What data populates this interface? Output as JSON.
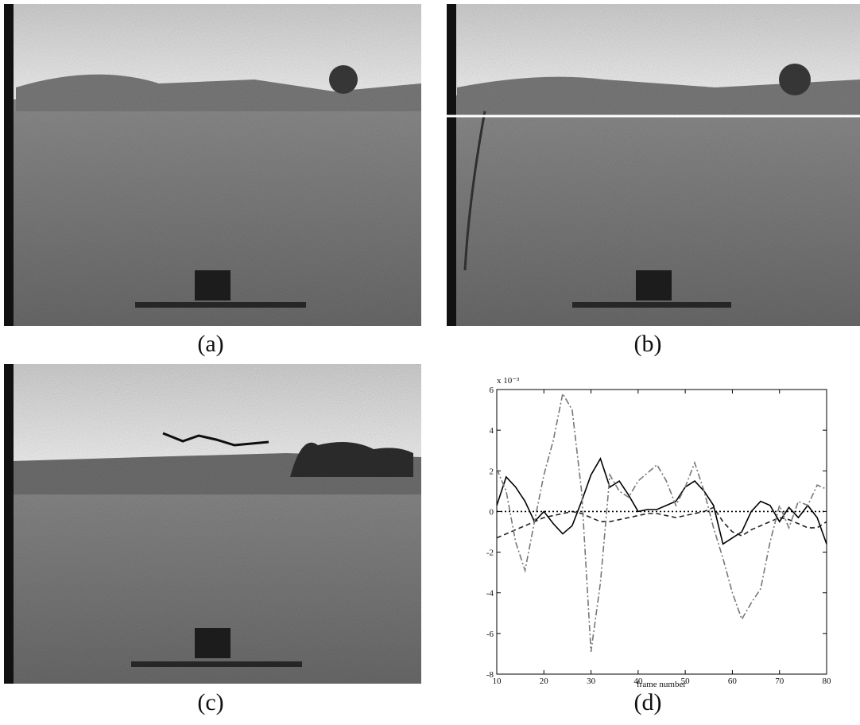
{
  "panels": {
    "a": "(a)",
    "b": "(b)",
    "c": "(c)",
    "d": "(d)"
  },
  "chart_data": {
    "type": "line",
    "scale_label": "x 10⁻³",
    "xlabel": "frame number",
    "x": [
      10,
      12,
      14,
      16,
      18,
      20,
      22,
      24,
      26,
      28,
      30,
      32,
      34,
      36,
      38,
      40,
      42,
      44,
      46,
      48,
      50,
      52,
      54,
      56,
      58,
      60,
      62,
      64,
      66,
      68,
      70,
      72,
      74,
      76,
      78,
      80
    ],
    "series": [
      {
        "color": "#000000",
        "dash": "none",
        "values": [
          0.3,
          1.7,
          1.2,
          0.5,
          -0.5,
          0,
          -0.6,
          -1.1,
          -0.7,
          0.5,
          1.8,
          2.6,
          1.2,
          1.5,
          0.8,
          0,
          0.1,
          0.1,
          0.3,
          0.5,
          1.2,
          1.5,
          1.0,
          0.3,
          -1.6,
          -1.3,
          -1.0,
          0,
          0.5,
          0.3,
          -0.5,
          0.2,
          -0.3,
          0.3,
          -0.3,
          -1.6
        ]
      },
      {
        "color": "#222222",
        "dash": "6 4",
        "values": [
          -1.3,
          -1.1,
          -0.9,
          -0.7,
          -0.5,
          -0.3,
          -0.2,
          -0.1,
          0,
          -0.1,
          -0.3,
          -0.5,
          -0.5,
          -0.4,
          -0.3,
          -0.2,
          -0.1,
          -0.1,
          -0.2,
          -0.3,
          -0.2,
          -0.1,
          0,
          0.2,
          -0.5,
          -1.0,
          -1.2,
          -0.9,
          -0.7,
          -0.5,
          -0.3,
          -0.4,
          -0.6,
          -0.8,
          -0.8,
          -0.5
        ]
      },
      {
        "color": "#777777",
        "dash": "8 3 2 3",
        "values": [
          2.1,
          1.0,
          -1.5,
          -2.9,
          -0.5,
          1.8,
          3.5,
          5.8,
          5.0,
          1.0,
          -6.9,
          -3.5,
          1.8,
          1.0,
          0.7,
          1.5,
          1.9,
          2.3,
          1.5,
          0.3,
          1.2,
          2.4,
          1.0,
          -0.8,
          -2.3,
          -4.0,
          -5.3,
          -4.5,
          -3.8,
          -1.5,
          0.3,
          -0.8,
          0.5,
          0.3,
          1.3,
          1.1
        ]
      },
      {
        "color": "#000000",
        "dash": "2 3",
        "values": [
          0,
          0,
          0,
          0,
          0,
          0,
          0,
          0,
          0,
          0,
          0,
          0,
          0,
          0,
          0,
          0,
          0,
          0,
          0,
          0,
          0,
          0,
          0,
          0,
          0,
          0,
          0,
          0,
          0,
          0,
          0,
          0,
          0,
          0,
          0,
          0
        ]
      }
    ],
    "xlim": [
      10,
      80
    ],
    "ylim": [
      -8,
      6
    ],
    "xticks": [
      10,
      20,
      30,
      40,
      50,
      60,
      70,
      80
    ],
    "yticks": [
      -8,
      -6,
      -4,
      -2,
      0,
      2,
      4,
      6
    ]
  }
}
